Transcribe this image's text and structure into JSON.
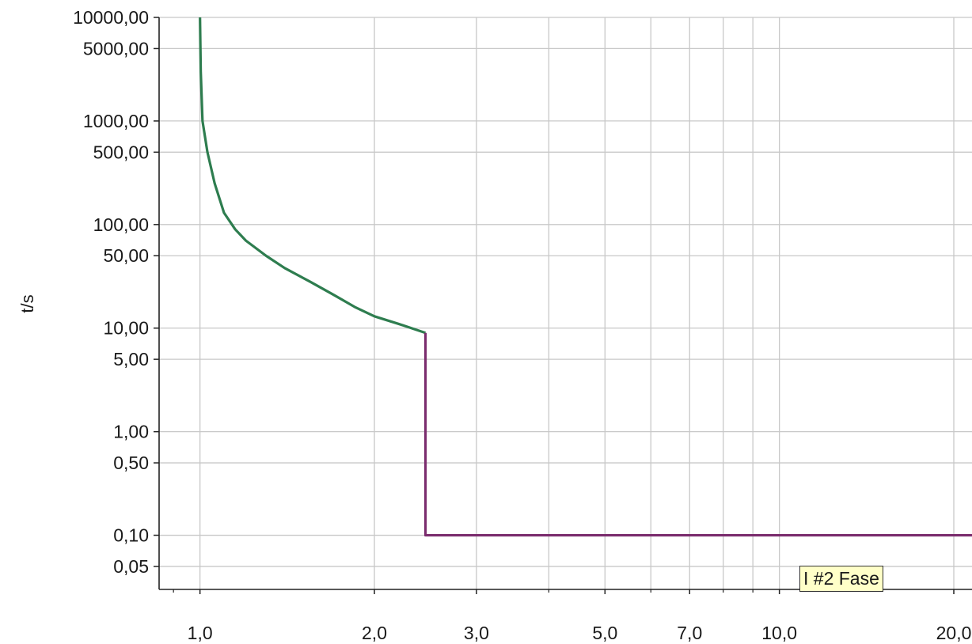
{
  "chart_data": {
    "type": "line",
    "title": "",
    "xlabel": "",
    "ylabel": "t/s",
    "xscale": "log",
    "yscale": "log",
    "xlim": [
      0.85,
      21.5
    ],
    "ylim": [
      0.03,
      10000
    ],
    "grid": true,
    "x_ticks": [
      {
        "value": 1,
        "label": "1,0"
      },
      {
        "value": 2,
        "label": "2,0"
      },
      {
        "value": 3,
        "label": "3,0"
      },
      {
        "value": 5,
        "label": "5,0"
      },
      {
        "value": 7,
        "label": "7,0"
      },
      {
        "value": 10,
        "label": "10,0"
      },
      {
        "value": 20,
        "label": "20,0"
      }
    ],
    "y_ticks": [
      {
        "value": 10000,
        "label": "10000,00"
      },
      {
        "value": 5000,
        "label": "5000,00"
      },
      {
        "value": 1000,
        "label": "1000,00"
      },
      {
        "value": 500,
        "label": "500,00"
      },
      {
        "value": 100,
        "label": "100,00"
      },
      {
        "value": 50,
        "label": "50,00"
      },
      {
        "value": 10,
        "label": "10,00"
      },
      {
        "value": 5,
        "label": "5,00"
      },
      {
        "value": 1,
        "label": "1,00"
      },
      {
        "value": 0.5,
        "label": "0,50"
      },
      {
        "value": 0.1,
        "label": "0,10"
      },
      {
        "value": 0.05,
        "label": "0,05"
      }
    ],
    "x_minor_grid": [
      4,
      6,
      8,
      9
    ],
    "series": [
      {
        "color": "#2e7d4f",
        "points": [
          [
            1.0,
            10000
          ],
          [
            1.003,
            3000
          ],
          [
            1.01,
            1000
          ],
          [
            1.03,
            500
          ],
          [
            1.06,
            250
          ],
          [
            1.1,
            130
          ],
          [
            1.15,
            90
          ],
          [
            1.2,
            70
          ],
          [
            1.3,
            50
          ],
          [
            1.4,
            38
          ],
          [
            1.55,
            28
          ],
          [
            1.7,
            21
          ],
          [
            1.85,
            16
          ],
          [
            2.0,
            13
          ],
          [
            2.2,
            11
          ],
          [
            2.45,
            9
          ]
        ]
      },
      {
        "color": "#7b2d6e",
        "points": [
          [
            2.45,
            9
          ],
          [
            2.45,
            0.1
          ],
          [
            21.5,
            0.1
          ]
        ]
      }
    ],
    "annotations": [
      {
        "text": "I #2 Fase"
      }
    ]
  }
}
